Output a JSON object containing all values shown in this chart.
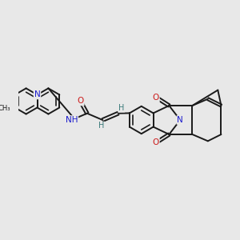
{
  "background_color": "#e8e8e8",
  "bond_color": "#1a1a1a",
  "nitrogen_color": "#1a1acc",
  "oxygen_color": "#cc1a1a",
  "hydrogen_color": "#3a7a7a",
  "line_width": 1.4,
  "fig_width": 3.0,
  "fig_height": 3.0,
  "dpi": 100,
  "xlim": [
    0,
    10
  ],
  "ylim": [
    2,
    8
  ]
}
